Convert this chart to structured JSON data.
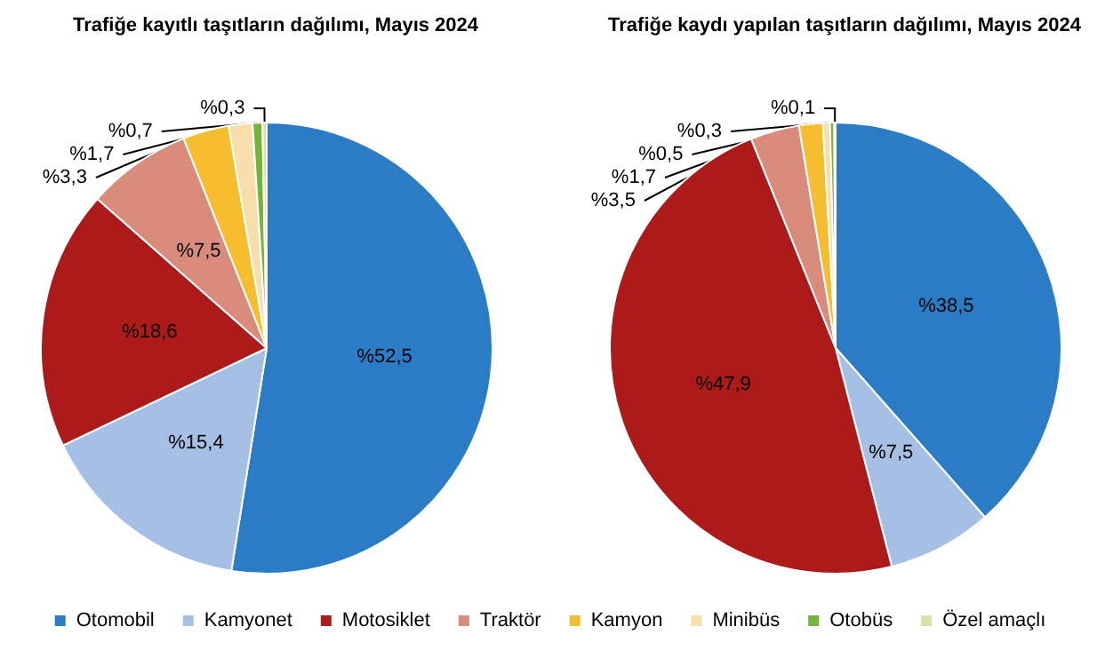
{
  "chart_data": [
    {
      "type": "pie",
      "title": "Trafiğe kayıtlı taşıtların dağılımı, Mayıs 2024",
      "categories": [
        "Otomobil",
        "Kamyonet",
        "Motosiklet",
        "Traktör",
        "Kamyon",
        "Minibüs",
        "Otobüs",
        "Özel amaçlı"
      ],
      "values": [
        52.5,
        15.4,
        18.6,
        7.5,
        3.3,
        1.7,
        0.7,
        0.3
      ],
      "value_labels": [
        "%52,5",
        "%15,4",
        "%18,6",
        "%7,5",
        "%3,3",
        "%1,7",
        "%0,7",
        "%0,3"
      ],
      "colors": [
        "#2b7cc6",
        "#a6bfe4",
        "#ad1a1a",
        "#d98c7c",
        "#f6bd2e",
        "#f8deaa",
        "#74b43a",
        "#d5e3a4"
      ],
      "legend": "bottom"
    },
    {
      "type": "pie",
      "title": "Trafiğe kaydı yapılan taşıtların dağılımı, Mayıs 2024",
      "categories": [
        null,
        null,
        null,
        null,
        null,
        null,
        null,
        null
      ],
      "values": [
        38.5,
        7.5,
        47.9,
        3.5,
        1.7,
        0.5,
        0.3,
        0.1
      ],
      "value_labels": [
        "%38,5",
        "%7,5",
        "%47,9",
        "%3,5",
        "%1,7",
        "%0,5",
        "%0,3",
        "%0,1"
      ],
      "colors": [
        "#2b7cc6",
        "#a6bfe4",
        "#ad1a1a",
        "#d98c7c",
        "#f6bd2e",
        "#f8deaa",
        "#74b43a",
        "#d5e3a4"
      ]
    }
  ]
}
